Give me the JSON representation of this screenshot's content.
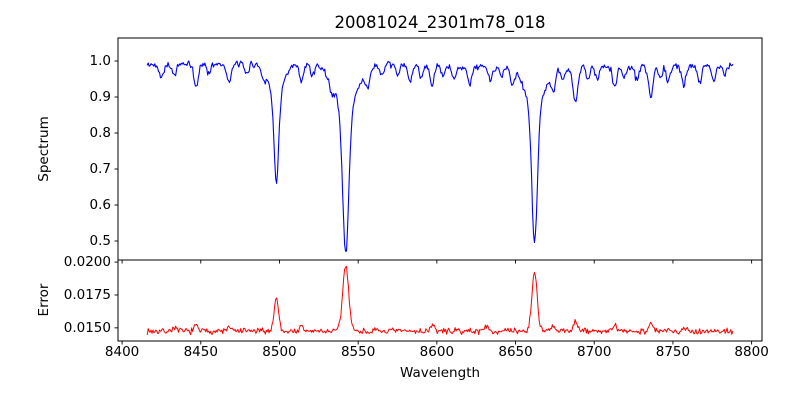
{
  "colors": {
    "background": "#ffffff",
    "axis": "#000000",
    "text": "#000000",
    "spectrum_line": "#0000ff",
    "error_line": "#ff0000"
  },
  "chart_data": {
    "type": "line",
    "title": "20081024_2301m78_018",
    "xlabel": "Wavelength",
    "xlim": [
      8397.4,
      8806.6
    ],
    "x_ticks": [
      8400,
      8450,
      8500,
      8550,
      8600,
      8650,
      8700,
      8750,
      8800
    ],
    "grid": false,
    "legend": false,
    "panels": [
      {
        "name": "spectrum",
        "ylabel": "Spectrum",
        "ylim": [
          0.4472,
          1.0639
        ],
        "y_ticks": [
          1.0,
          0.9,
          0.8,
          0.7,
          0.6,
          0.5
        ],
        "y_tick_labels": [
          "1.0",
          "0.9",
          "0.8",
          "0.7",
          "0.6",
          "0.5"
        ],
        "series": {
          "name": "spectrum",
          "color": "#0000ff",
          "x_start": 8416,
          "x_end": 8788,
          "x_step": 0.6,
          "continuum": 0.987,
          "continuum_wave_amp": 0.005,
          "continuum_wave_period": 60,
          "noise_amp": 0.011,
          "noise_seed": 42,
          "absorption_lines": [
            {
              "center": 8498.0,
              "depth": 0.245,
              "sigma": 1.5,
              "wing_depth": 0.08,
              "wing_sigma": 5
            },
            {
              "center": 8542.1,
              "depth": 0.4,
              "sigma": 1.9,
              "wing_depth": 0.125,
              "wing_sigma": 7
            },
            {
              "center": 8662.1,
              "depth": 0.375,
              "sigma": 1.7,
              "wing_depth": 0.115,
              "wing_sigma": 6
            },
            {
              "center": 8425,
              "depth": 0.035,
              "sigma": 1.2
            },
            {
              "center": 8433,
              "depth": 0.03,
              "sigma": 1.2
            },
            {
              "center": 8447,
              "depth": 0.065,
              "sigma": 1.3
            },
            {
              "center": 8455,
              "depth": 0.025,
              "sigma": 1.1
            },
            {
              "center": 8468,
              "depth": 0.055,
              "sigma": 1.3
            },
            {
              "center": 8479,
              "depth": 0.03,
              "sigma": 1.2
            },
            {
              "center": 8490,
              "depth": 0.025,
              "sigma": 1.1
            },
            {
              "center": 8514,
              "depth": 0.05,
              "sigma": 1.3
            },
            {
              "center": 8521,
              "depth": 0.03,
              "sigma": 1.1
            },
            {
              "center": 8533,
              "depth": 0.03,
              "sigma": 1.2
            },
            {
              "center": 8556,
              "depth": 0.05,
              "sigma": 1.3
            },
            {
              "center": 8565,
              "depth": 0.03,
              "sigma": 1.2
            },
            {
              "center": 8575,
              "depth": 0.025,
              "sigma": 1.1
            },
            {
              "center": 8583,
              "depth": 0.045,
              "sigma": 1.3
            },
            {
              "center": 8590,
              "depth": 0.03,
              "sigma": 1.1
            },
            {
              "center": 8597,
              "depth": 0.055,
              "sigma": 1.3
            },
            {
              "center": 8604,
              "depth": 0.03,
              "sigma": 1.1
            },
            {
              "center": 8611,
              "depth": 0.04,
              "sigma": 1.2
            },
            {
              "center": 8621,
              "depth": 0.05,
              "sigma": 1.3
            },
            {
              "center": 8634,
              "depth": 0.04,
              "sigma": 1.2
            },
            {
              "center": 8641,
              "depth": 0.025,
              "sigma": 1.1
            },
            {
              "center": 8648,
              "depth": 0.04,
              "sigma": 1.2
            },
            {
              "center": 8674,
              "depth": 0.055,
              "sigma": 1.3
            },
            {
              "center": 8680,
              "depth": 0.035,
              "sigma": 1.2
            },
            {
              "center": 8688,
              "depth": 0.1,
              "sigma": 1.5
            },
            {
              "center": 8696,
              "depth": 0.03,
              "sigma": 1.1
            },
            {
              "center": 8702,
              "depth": 0.035,
              "sigma": 1.2
            },
            {
              "center": 8713,
              "depth": 0.055,
              "sigma": 1.3
            },
            {
              "center": 8719,
              "depth": 0.03,
              "sigma": 1.1
            },
            {
              "center": 8727,
              "depth": 0.035,
              "sigma": 1.2
            },
            {
              "center": 8736,
              "depth": 0.085,
              "sigma": 1.5
            },
            {
              "center": 8742,
              "depth": 0.03,
              "sigma": 1.1
            },
            {
              "center": 8747,
              "depth": 0.045,
              "sigma": 1.2
            },
            {
              "center": 8757,
              "depth": 0.05,
              "sigma": 1.3
            },
            {
              "center": 8767,
              "depth": 0.045,
              "sigma": 1.2
            },
            {
              "center": 8776,
              "depth": 0.04,
              "sigma": 1.2
            },
            {
              "center": 8783,
              "depth": 0.03,
              "sigma": 1.1
            }
          ]
        }
      },
      {
        "name": "error",
        "ylabel": "Error",
        "ylim": [
          0.014,
          0.02016
        ],
        "y_ticks": [
          0.02,
          0.0175,
          0.015
        ],
        "y_tick_labels": [
          "0.0200",
          "0.0175",
          "0.0150"
        ],
        "series": {
          "name": "error",
          "color": "#ff0000",
          "x_start": 8416,
          "x_end": 8788,
          "x_step": 0.6,
          "baseline": 0.01475,
          "noise_amp": 0.00028,
          "noise_seed": 7,
          "peaks": [
            {
              "center": 8498.0,
              "height": 0.00255,
              "sigma": 1.4
            },
            {
              "center": 8542.1,
              "height": 0.005,
              "sigma": 1.9
            },
            {
              "center": 8662.1,
              "height": 0.00445,
              "sigma": 1.7
            },
            {
              "center": 8433,
              "height": 0.0003,
              "sigma": 1.2
            },
            {
              "center": 8447,
              "height": 0.0004,
              "sigma": 1.2
            },
            {
              "center": 8468,
              "height": 0.0003,
              "sigma": 1.2
            },
            {
              "center": 8514,
              "height": 0.0003,
              "sigma": 1.2
            },
            {
              "center": 8597,
              "height": 0.0005,
              "sigma": 1.2
            },
            {
              "center": 8631,
              "height": 0.00045,
              "sigma": 1.1
            },
            {
              "center": 8674,
              "height": 0.0003,
              "sigma": 1.2
            },
            {
              "center": 8688,
              "height": 0.0008,
              "sigma": 1.3
            },
            {
              "center": 8713,
              "height": 0.0004,
              "sigma": 1.2
            },
            {
              "center": 8736,
              "height": 0.0006,
              "sigma": 1.3
            },
            {
              "center": 8757,
              "height": 0.0003,
              "sigma": 1.2
            }
          ]
        }
      }
    ]
  }
}
